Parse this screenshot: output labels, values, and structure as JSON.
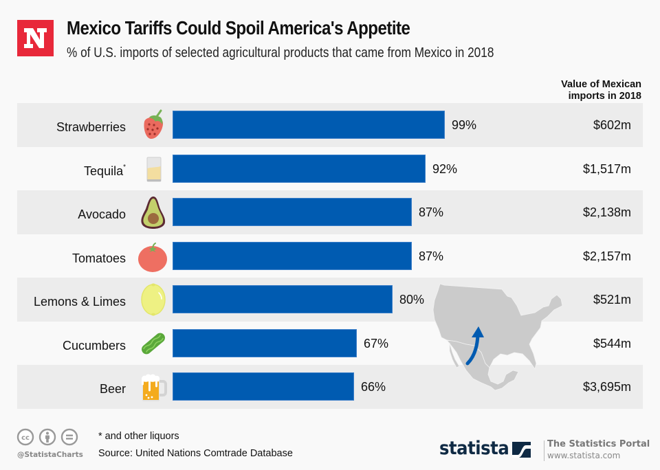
{
  "brand": {
    "logo_letter": "N",
    "logo_color": "#e8283a"
  },
  "header": {
    "title": "Mexico Tariffs Could Spoil America's Appetite",
    "subtitle": "% of U.S. imports of selected agricultural products that came from Mexico in 2018"
  },
  "value_column_header": {
    "line1": "Value of Mexican",
    "line2": "imports in 2018"
  },
  "chart_data": {
    "type": "bar",
    "orientation": "horizontal",
    "title": "Mexico Tariffs Could Spoil America's Appetite",
    "subtitle": "% of U.S. imports of selected agricultural products that came from Mexico in 2018",
    "xlabel": "",
    "ylabel": "",
    "xlim": [
      0,
      100
    ],
    "grid": false,
    "legend": "none",
    "bar_color": "#005bb1",
    "categories": [
      "Strawberries",
      "Tequila",
      "Avocado",
      "Tomatoes",
      "Lemons & Limes",
      "Cucumbers",
      "Beer"
    ],
    "values": [
      99,
      92,
      87,
      87,
      80,
      67,
      66
    ],
    "value_labels": [
      "99%",
      "92%",
      "87%",
      "87%",
      "80%",
      "67%",
      "66%"
    ],
    "secondary_column": {
      "header": "Value of Mexican imports in 2018",
      "values": [
        "$602m",
        "$1,517m",
        "$2,138m",
        "$2,157m",
        "$521m",
        "$544m",
        "$3,695m"
      ]
    },
    "rows": [
      {
        "label": "Strawberries",
        "footnote_mark": "",
        "icon": "strawberry-icon",
        "percent": 99,
        "percent_label": "99%",
        "value": "$602m"
      },
      {
        "label": "Tequila",
        "footnote_mark": "*",
        "icon": "tequila-glass-icon",
        "percent": 92,
        "percent_label": "92%",
        "value": "$1,517m"
      },
      {
        "label": "Avocado",
        "footnote_mark": "",
        "icon": "avocado-icon",
        "percent": 87,
        "percent_label": "87%",
        "value": "$2,138m"
      },
      {
        "label": "Tomatoes",
        "footnote_mark": "",
        "icon": "tomato-icon",
        "percent": 87,
        "percent_label": "87%",
        "value": "$2,157m"
      },
      {
        "label": "Lemons & Limes",
        "footnote_mark": "",
        "icon": "lemon-icon",
        "percent": 80,
        "percent_label": "80%",
        "value": "$521m"
      },
      {
        "label": "Cucumbers",
        "footnote_mark": "",
        "icon": "cucumber-icon",
        "percent": 67,
        "percent_label": "67%",
        "value": "$544m"
      },
      {
        "label": "Beer",
        "footnote_mark": "",
        "icon": "beer-mug-icon",
        "percent": 66,
        "percent_label": "66%",
        "value": "$3,695m"
      }
    ],
    "annotations": [
      "North America map with arrow from Mexico to U.S."
    ]
  },
  "footer": {
    "note": "* and other liquors",
    "source": "Source: United Nations Comtrade Database",
    "handle": "@StatistaCharts",
    "license_icons": [
      "cc-icon",
      "attribution-icon",
      "no-derivatives-icon"
    ],
    "statista_word": "statista",
    "portal_title": "The Statistics Portal",
    "portal_url": "www.statista.com"
  }
}
